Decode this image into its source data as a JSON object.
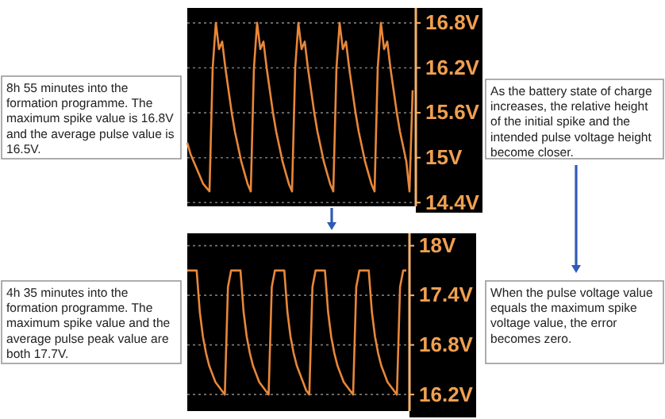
{
  "chart_data": [
    {
      "type": "line",
      "ylim": [
        14.35,
        17.0
      ],
      "yticks": [
        {
          "value": 14.4,
          "label": "14.4V"
        },
        {
          "value": 15,
          "label": "15V"
        },
        {
          "value": 15.6,
          "label": "15.6V"
        },
        {
          "value": 16.2,
          "label": "16.2V"
        },
        {
          "value": 16.8,
          "label": "16.8V"
        }
      ],
      "grid": "y",
      "tick_labels": "y",
      "categories": [
        null,
        null,
        null,
        null,
        null,
        null,
        null,
        null,
        null,
        null,
        null,
        null,
        null,
        null,
        null,
        null,
        null,
        null,
        null,
        null,
        null,
        null,
        null,
        null,
        null,
        null,
        null,
        null,
        null,
        null,
        null,
        null,
        null,
        null,
        null,
        null,
        null,
        null,
        null,
        null,
        null,
        null,
        null,
        null,
        null,
        null,
        null,
        null,
        null,
        null,
        null,
        null,
        null,
        null,
        null,
        null,
        null,
        null,
        null,
        null,
        null,
        null,
        null,
        null,
        null,
        null,
        null,
        null,
        null,
        null,
        null,
        null
      ],
      "series": [
        {
          "color": "#e8873a",
          "values": [
            15.2,
            15.05,
            14.95,
            14.85,
            14.75,
            14.65,
            14.6,
            14.55,
            16.2,
            16.8,
            16.45,
            16.55,
            16.2,
            15.9,
            15.6,
            15.35,
            15.15,
            14.95,
            14.8,
            14.65,
            14.55,
            16.2,
            16.8,
            16.45,
            16.55,
            16.2,
            15.9,
            15.6,
            15.35,
            15.15,
            14.95,
            14.8,
            14.65,
            14.55,
            16.2,
            16.8,
            16.45,
            16.55,
            16.2,
            15.9,
            15.6,
            15.35,
            15.15,
            14.95,
            14.8,
            14.65,
            14.55,
            16.2,
            16.8,
            16.45,
            16.55,
            16.2,
            15.9,
            15.6,
            15.35,
            15.15,
            14.95,
            14.8,
            14.65,
            14.55,
            16.2,
            16.8,
            16.45,
            16.55,
            16.2,
            15.9,
            15.6,
            15.35,
            15.15,
            14.95,
            14.55,
            15.9
          ]
        }
      ],
      "annotations": [
        "8h 55 minutes into the formation programme. The maximum spike value is 16.8V and the average pulse value is 16.5V.",
        "As the battery state of charge increases, the relative height of the initial spike and the intended pulse voltage height become closer."
      ]
    },
    {
      "type": "line",
      "ylim": [
        16.0,
        18.15
      ],
      "yticks": [
        {
          "value": 16.2,
          "label": "16.2V"
        },
        {
          "value": 16.8,
          "label": "16.8V"
        },
        {
          "value": 17.4,
          "label": "17.4V"
        },
        {
          "value": 18,
          "label": "18V"
        }
      ],
      "grid": "y",
      "tick_labels": "y",
      "categories": [
        null,
        null,
        null,
        null,
        null,
        null,
        null,
        null,
        null,
        null,
        null,
        null,
        null,
        null,
        null,
        null,
        null,
        null,
        null,
        null,
        null,
        null,
        null,
        null,
        null,
        null,
        null,
        null,
        null,
        null,
        null,
        null,
        null,
        null,
        null,
        null,
        null,
        null,
        null,
        null,
        null,
        null,
        null,
        null,
        null,
        null,
        null,
        null,
        null,
        null,
        null,
        null,
        null,
        null,
        null,
        null,
        null,
        null,
        null,
        null,
        null,
        null,
        null,
        null,
        null,
        null,
        null,
        null,
        null,
        null,
        null
      ],
      "series": [
        {
          "color": "#e8873a",
          "values": [
            17.7,
            17.7,
            17.7,
            17.7,
            17.2,
            16.9,
            16.7,
            16.55,
            16.45,
            16.35,
            16.3,
            16.25,
            16.2,
            17.5,
            17.7,
            17.7,
            17.7,
            17.7,
            17.2,
            16.9,
            16.7,
            16.55,
            16.45,
            16.35,
            16.3,
            16.25,
            16.2,
            17.5,
            17.7,
            17.7,
            17.7,
            17.7,
            17.2,
            16.9,
            16.7,
            16.55,
            16.45,
            16.35,
            16.25,
            16.2,
            17.5,
            17.7,
            17.7,
            17.7,
            17.7,
            17.2,
            16.9,
            16.7,
            16.55,
            16.45,
            16.35,
            16.3,
            16.25,
            16.2,
            17.5,
            17.7,
            17.7,
            17.7,
            17.7,
            17.2,
            16.9,
            16.7,
            16.55,
            16.45,
            16.35,
            16.3,
            16.25,
            16.2,
            17.5,
            17.7,
            17.7
          ]
        }
      ],
      "annotations": [
        "4h 35 minutes into the formation programme. The maximum spike value and the average pulse peak value are both 17.7V.",
        "When the pulse voltage value equals the maximum spike voltage value, the error becomes zero."
      ]
    }
  ]
}
